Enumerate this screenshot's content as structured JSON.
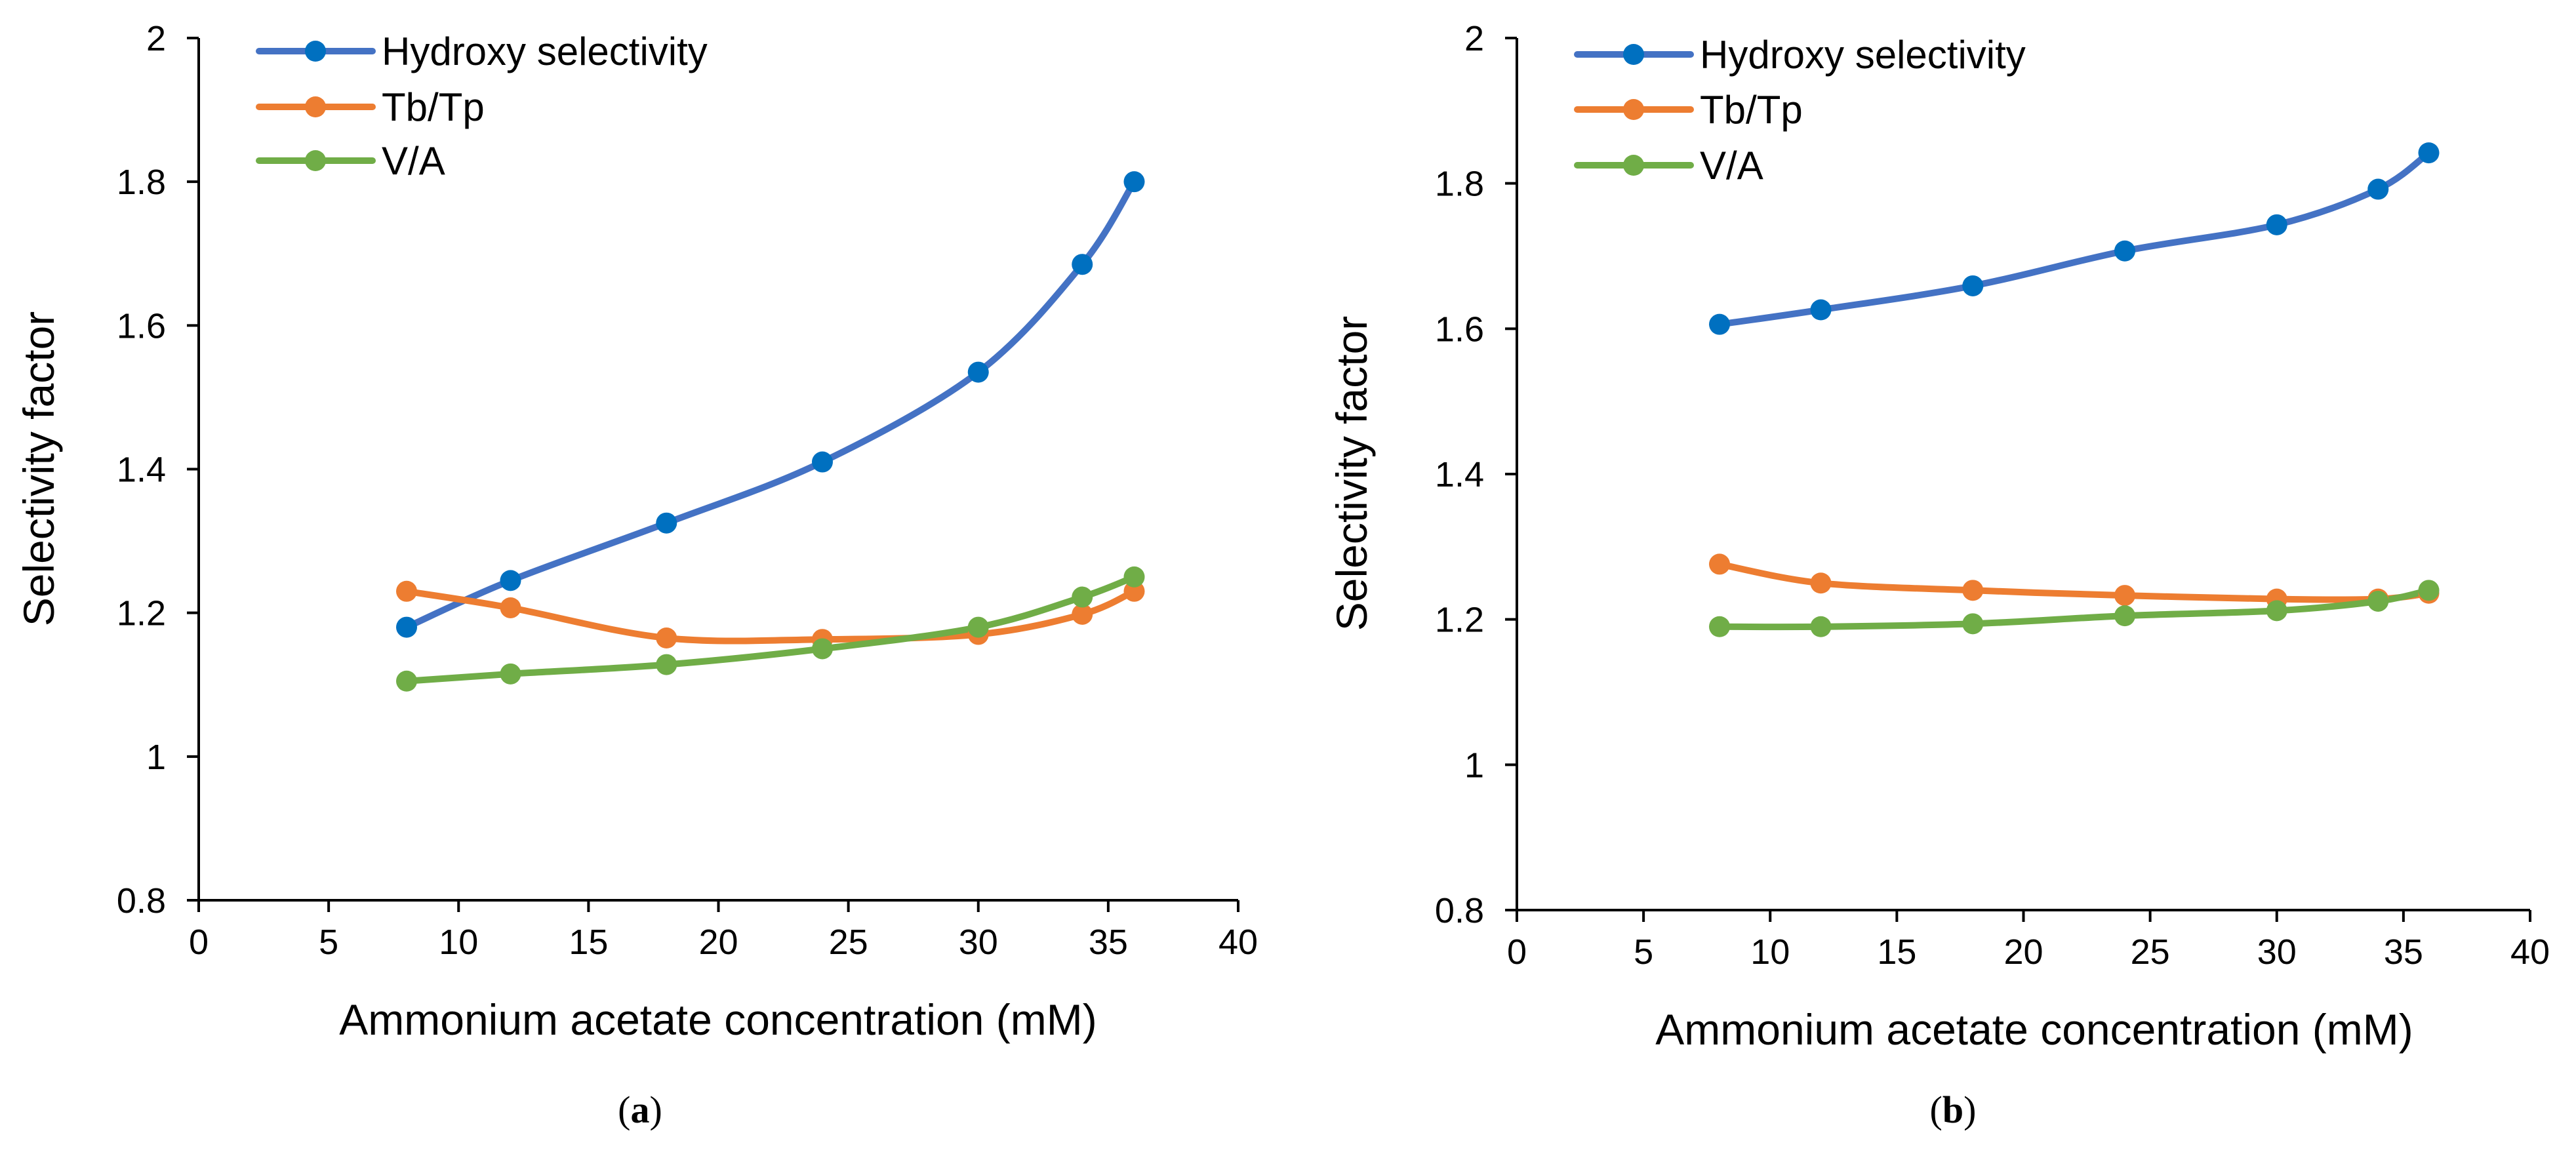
{
  "chart_data": [
    {
      "type": "line",
      "panel": "a",
      "caption": {
        "open": "(",
        "letter": "a",
        "close": ")"
      },
      "title": "",
      "xlabel": "Ammonium acetate concentration (mM)",
      "ylabel": "Selectivity factor",
      "xlim": [
        0,
        40
      ],
      "ylim": [
        0.8,
        2
      ],
      "xticks": [
        0,
        5,
        10,
        15,
        20,
        25,
        30,
        35,
        40
      ],
      "yticks": [
        0.8,
        1,
        1.2,
        1.4,
        1.6,
        1.8,
        2
      ],
      "xtick_labels": [
        "0",
        "5",
        "10",
        "15",
        "20",
        "25",
        "30",
        "35",
        "40"
      ],
      "ytick_labels": [
        "0.8",
        "1",
        "1.2",
        "1.4",
        "1.6",
        "1.8",
        "2"
      ],
      "grid": false,
      "legend_position": "top-left",
      "x": [
        8,
        12,
        18,
        24,
        30,
        34,
        36
      ],
      "series": [
        {
          "name": "Hydroxy selectivity",
          "color": "#4472C4",
          "marker": "#0070C0",
          "values": [
            1.18,
            1.245,
            1.325,
            1.41,
            1.535,
            1.685,
            1.8
          ]
        },
        {
          "name": "Tb/Tp",
          "color": "#ED7D31",
          "marker": "#ED7D31",
          "values": [
            1.23,
            1.207,
            1.165,
            1.163,
            1.17,
            1.198,
            1.23
          ]
        },
        {
          "name": "V/A",
          "color": "#70AD47",
          "marker": "#70AD47",
          "values": [
            1.105,
            1.115,
            1.128,
            1.15,
            1.18,
            1.222,
            1.25
          ]
        }
      ]
    },
    {
      "type": "line",
      "panel": "b",
      "caption": {
        "open": "(",
        "letter": "b",
        "close": ")"
      },
      "title": "",
      "xlabel": "Ammonium acetate concentration (mM)",
      "ylabel": "Selectivity factor",
      "xlim": [
        0,
        40
      ],
      "ylim": [
        0.8,
        2
      ],
      "xticks": [
        0,
        5,
        10,
        15,
        20,
        25,
        30,
        35,
        40
      ],
      "yticks": [
        0.8,
        1,
        1.2,
        1.4,
        1.6,
        1.8,
        2
      ],
      "xtick_labels": [
        "0",
        "5",
        "10",
        "15",
        "20",
        "25",
        "30",
        "35",
        "40"
      ],
      "ytick_labels": [
        "0.8",
        "1",
        "1.2",
        "1.4",
        "1.6",
        "1.8",
        "2"
      ],
      "grid": false,
      "legend_position": "top-left",
      "x": [
        8,
        12,
        18,
        24,
        30,
        34,
        36
      ],
      "series": [
        {
          "name": "Hydroxy selectivity",
          "color": "#4472C4",
          "marker": "#0070C0",
          "values": [
            1.606,
            1.626,
            1.659,
            1.707,
            1.743,
            1.792,
            1.842
          ]
        },
        {
          "name": "Tb/Tp",
          "color": "#ED7D31",
          "marker": "#ED7D31",
          "values": [
            1.276,
            1.25,
            1.24,
            1.233,
            1.228,
            1.228,
            1.236
          ]
        },
        {
          "name": "V/A",
          "color": "#70AD47",
          "marker": "#70AD47",
          "values": [
            1.19,
            1.19,
            1.194,
            1.205,
            1.212,
            1.225,
            1.24
          ]
        }
      ]
    }
  ]
}
